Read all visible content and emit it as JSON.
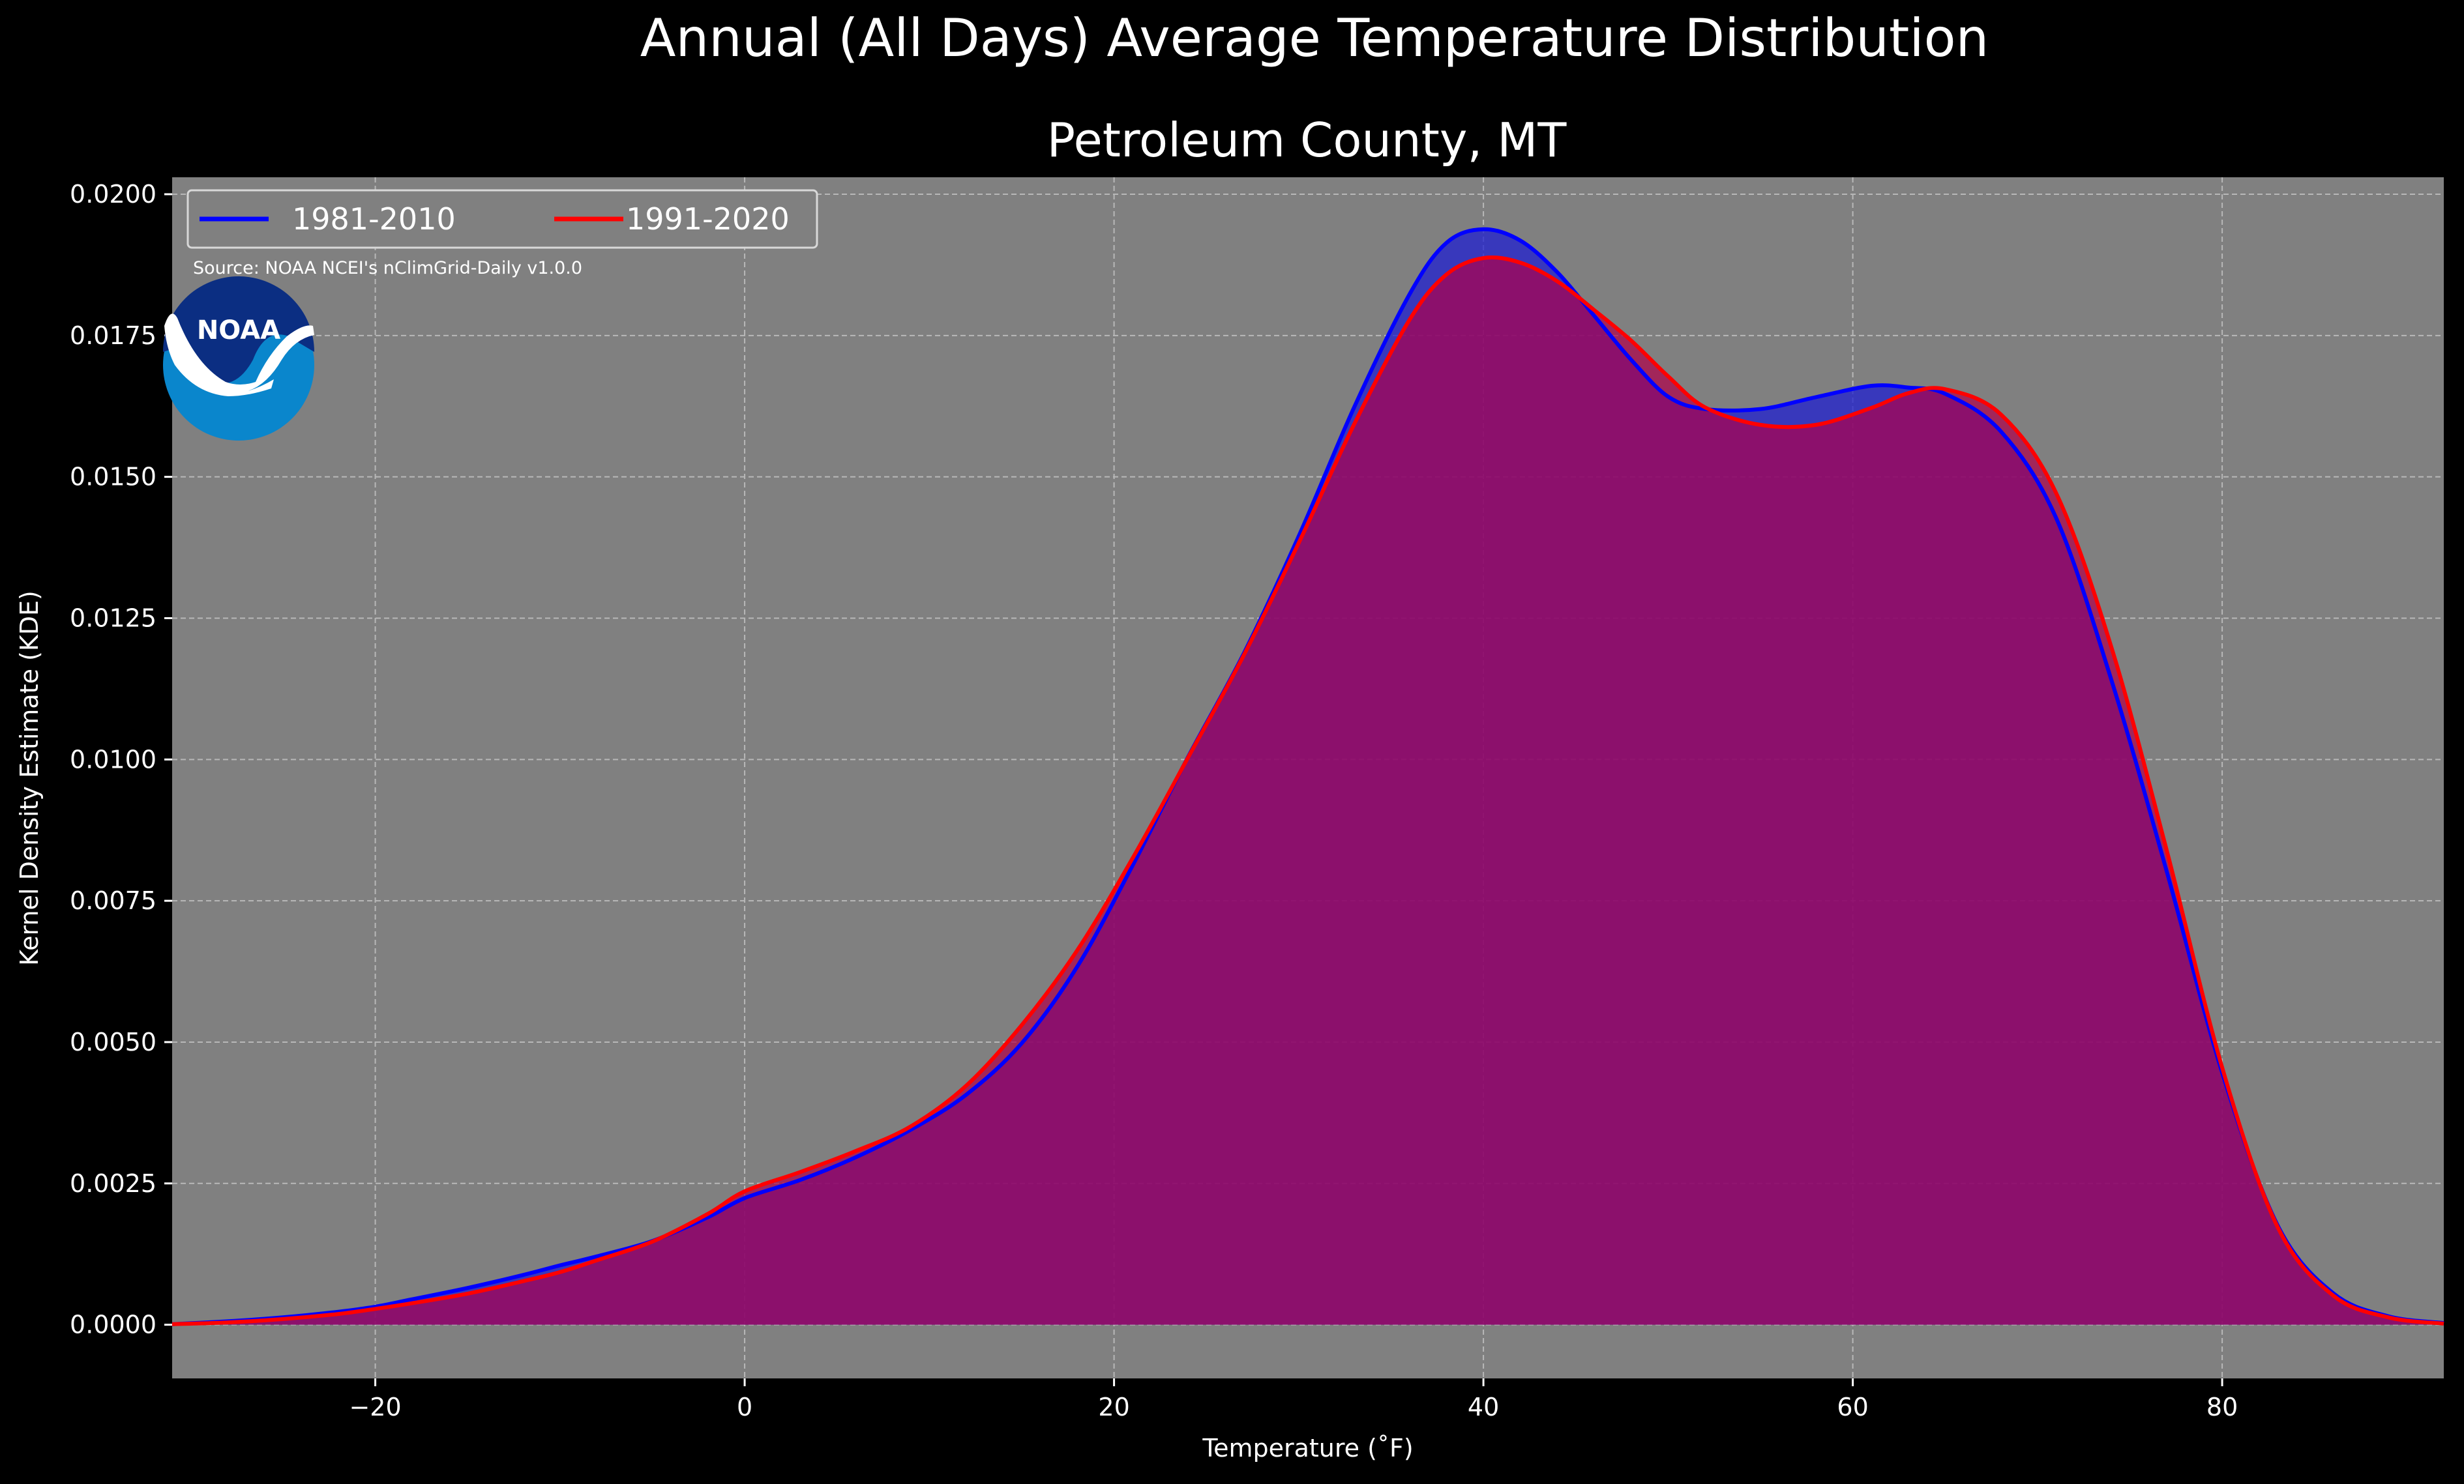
{
  "figure": {
    "suptitle": "Annual (All Days) Average Temperature Distribution",
    "subtitle": "Petroleum County, MT",
    "source": "Source: NOAA NCEI's nClimGrid-Daily v1.0.0",
    "logo_text": "NOAA"
  },
  "colors": {
    "figure_bg": "#000000",
    "plot_bg": "#808080",
    "grid": "#b8b8b8",
    "series_1981": "#0000ff",
    "series_1991": "#ff0000",
    "fill_1981": "#2020d0",
    "fill_1991": "#b0004a",
    "logo_dark": "#0b2e82",
    "logo_light": "#0a86cc"
  },
  "chart_data": {
    "type": "area",
    "title": "Petroleum County, MT",
    "xlabel": "Temperature (˚F)",
    "ylabel": "Kernel Density Estimate (KDE)",
    "xlim": [
      -31,
      92
    ],
    "ylim": [
      -0.00095,
      0.0203
    ],
    "xticks": [
      -20,
      0,
      20,
      40,
      60,
      80
    ],
    "xtick_labels": [
      "−20",
      "0",
      "20",
      "40",
      "60",
      "80"
    ],
    "yticks": [
      0,
      0.0025,
      0.005,
      0.0075,
      0.01,
      0.0125,
      0.015,
      0.0175,
      0.02
    ],
    "ytick_labels": [
      "0.0000",
      "0.0025",
      "0.0050",
      "0.0075",
      "0.0100",
      "0.0125",
      "0.0150",
      "0.0175",
      "0.0200"
    ],
    "grid": true,
    "legend_position": "top-left",
    "series": [
      {
        "name": "1981-2010",
        "x": [
          -31,
          -28,
          -25,
          -22,
          -20,
          -18,
          -15,
          -12,
          -10,
          -8,
          -5,
          -2,
          0,
          3,
          6,
          9,
          12,
          15,
          18,
          21,
          24,
          27,
          30,
          33,
          36,
          38,
          40,
          42,
          44,
          46,
          48,
          50,
          52,
          55,
          58,
          61,
          63,
          65,
          68,
          71,
          74,
          77,
          80,
          83,
          86,
          89,
          92
        ],
        "y": [
          1e-05,
          6e-05,
          0.00013,
          0.00023,
          0.00032,
          0.00045,
          0.00065,
          0.00088,
          0.00105,
          0.00121,
          0.00148,
          0.0019,
          0.00224,
          0.00256,
          0.00296,
          0.00345,
          0.00407,
          0.00498,
          0.00633,
          0.00812,
          0.01004,
          0.01186,
          0.01395,
          0.01623,
          0.01823,
          0.01914,
          0.01938,
          0.01918,
          0.01862,
          0.01785,
          0.01707,
          0.01642,
          0.0162,
          0.0162,
          0.01641,
          0.01661,
          0.01658,
          0.01647,
          0.01581,
          0.01428,
          0.01141,
          0.00802,
          0.00446,
          0.00176,
          0.00056,
          0.00015,
          3e-05
        ]
      },
      {
        "name": "1991-2020",
        "x": [
          -31,
          -28,
          -25,
          -22,
          -20,
          -18,
          -15,
          -12,
          -10,
          -8,
          -5,
          -2,
          0,
          3,
          6,
          9,
          12,
          15,
          18,
          21,
          24,
          27,
          30,
          33,
          36,
          38,
          40,
          42,
          44,
          46,
          48,
          50,
          52,
          55,
          58,
          61,
          63,
          65,
          68,
          71,
          74,
          77,
          80,
          83,
          86,
          89,
          92
        ],
        "y": [
          1e-05,
          4e-05,
          0.0001,
          0.00019,
          0.00028,
          0.00038,
          0.00055,
          0.00077,
          0.00093,
          0.00114,
          0.00147,
          0.00196,
          0.00236,
          0.0027,
          0.00307,
          0.00351,
          0.00423,
          0.0053,
          0.00662,
          0.00825,
          0.01003,
          0.01183,
          0.01383,
          0.01593,
          0.01778,
          0.01858,
          0.01887,
          0.01879,
          0.01846,
          0.01795,
          0.01741,
          0.01678,
          0.01623,
          0.01592,
          0.01592,
          0.01622,
          0.01648,
          0.01655,
          0.01611,
          0.01472,
          0.01199,
          0.00839,
          0.00455,
          0.00173,
          0.00052,
          0.00013,
          2e-05
        ]
      }
    ]
  }
}
